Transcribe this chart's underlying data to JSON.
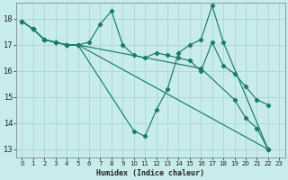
{
  "xlabel": "Humidex (Indice chaleur)",
  "bg_color": "#c8ecec",
  "grid_color": "#b0d8d8",
  "line_color": "#1a7a6e",
  "xlim": [
    -0.5,
    23.5
  ],
  "ylim": [
    12.7,
    18.6
  ],
  "xticks": [
    0,
    1,
    2,
    3,
    4,
    5,
    6,
    7,
    8,
    9,
    10,
    11,
    12,
    13,
    14,
    15,
    16,
    17,
    18,
    19,
    20,
    21,
    22,
    23
  ],
  "yticks": [
    13,
    14,
    15,
    16,
    17,
    18
  ],
  "line1_x": [
    0,
    1,
    2,
    3,
    4,
    5,
    6,
    7,
    8,
    9,
    10,
    11,
    12,
    13,
    14,
    15,
    16,
    17,
    18,
    19,
    20,
    21,
    22
  ],
  "line1_y": [
    17.9,
    17.6,
    17.2,
    17.1,
    17.0,
    17.0,
    17.1,
    17.8,
    18.3,
    17.0,
    16.6,
    16.5,
    16.7,
    16.6,
    16.5,
    16.4,
    16.0,
    17.1,
    16.2,
    15.9,
    15.4,
    14.9,
    14.7
  ],
  "line2_x": [
    0,
    1,
    2,
    3,
    4,
    5,
    10,
    11,
    12,
    13,
    14,
    15,
    16,
    17,
    18,
    22
  ],
  "line2_y": [
    17.9,
    17.6,
    17.2,
    17.1,
    17.0,
    17.0,
    13.7,
    13.5,
    14.5,
    15.3,
    16.7,
    17.0,
    17.2,
    18.5,
    17.1,
    13.0
  ],
  "line3_x": [
    0,
    1,
    2,
    3,
    4,
    5,
    16,
    19,
    20,
    21,
    22
  ],
  "line3_y": [
    17.9,
    17.6,
    17.2,
    17.1,
    17.0,
    17.0,
    16.1,
    14.9,
    14.2,
    13.8,
    13.0
  ],
  "line4_x": [
    0,
    1,
    2,
    3,
    4,
    5,
    22
  ],
  "line4_y": [
    17.9,
    17.6,
    17.2,
    17.1,
    17.0,
    17.0,
    13.0
  ]
}
